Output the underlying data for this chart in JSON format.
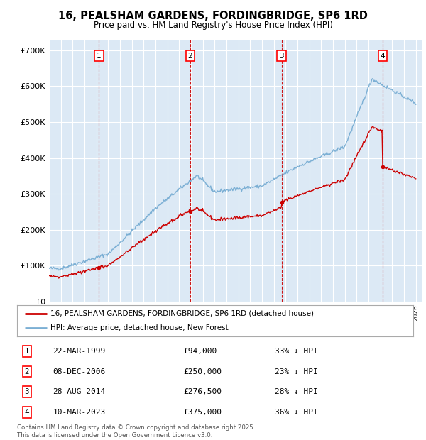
{
  "title": "16, PEALSHAM GARDENS, FORDINGBRIDGE, SP6 1RD",
  "subtitle": "Price paid vs. HM Land Registry's House Price Index (HPI)",
  "plot_bg_color": "#dce9f5",
  "y_ticks": [
    0,
    100000,
    200000,
    300000,
    400000,
    500000,
    600000,
    700000
  ],
  "y_tick_labels": [
    "£0",
    "£100K",
    "£200K",
    "£300K",
    "£400K",
    "£500K",
    "£600K",
    "£700K"
  ],
  "x_start_year": 1995,
  "x_end_year": 2026,
  "purchases": [
    {
      "num": 1,
      "date": "22-MAR-1999",
      "year": 1999.22,
      "price": 94000,
      "label": "33% ↓ HPI"
    },
    {
      "num": 2,
      "date": "08-DEC-2006",
      "year": 2006.93,
      "price": 250000,
      "label": "23% ↓ HPI"
    },
    {
      "num": 3,
      "date": "28-AUG-2014",
      "year": 2014.65,
      "price": 276500,
      "label": "28% ↓ HPI"
    },
    {
      "num": 4,
      "date": "10-MAR-2023",
      "year": 2023.19,
      "price": 375000,
      "label": "36% ↓ HPI"
    }
  ],
  "legend_label_red": "16, PEALSHAM GARDENS, FORDINGBRIDGE, SP6 1RD (detached house)",
  "legend_label_blue": "HPI: Average price, detached house, New Forest",
  "footnote": "Contains HM Land Registry data © Crown copyright and database right 2025.\nThis data is licensed under the Open Government Licence v3.0.",
  "red_color": "#cc0000",
  "blue_color": "#7bafd4",
  "dashed_red_color": "#cc0000"
}
